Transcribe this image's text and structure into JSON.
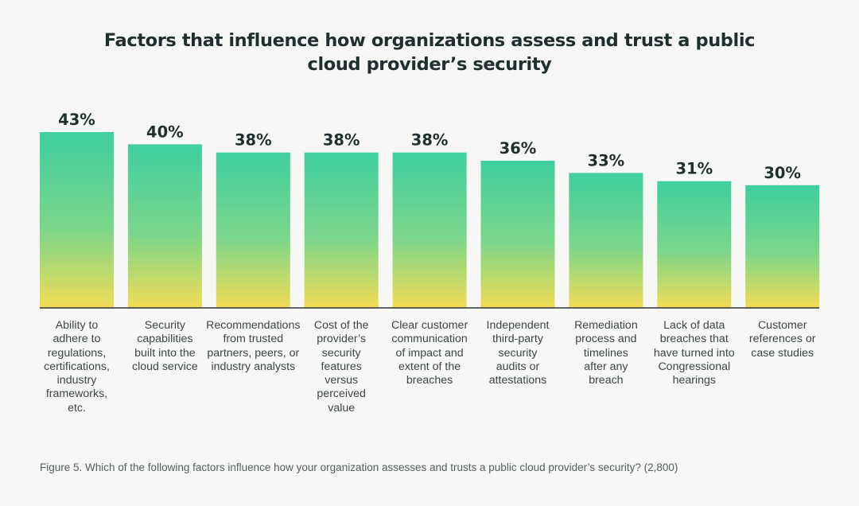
{
  "chart_data": {
    "type": "bar",
    "title_lines": [
      "Factors that influence how organizations assess and trust a public",
      "cloud provider’s security"
    ],
    "categories": [
      [
        "Ability to",
        "adhere to",
        "regulations,",
        "certifications,",
        "industry",
        "frameworks,",
        "etc."
      ],
      [
        "Security",
        "capabilities",
        "built into the",
        "cloud service"
      ],
      [
        "Recommendations",
        "from trusted",
        "partners, peers, or",
        "industry analysts"
      ],
      [
        "Cost of the",
        "provider’s",
        "security",
        "features",
        "versus",
        "perceived",
        "value"
      ],
      [
        "Clear customer",
        "communication",
        "of impact and",
        "extent of the",
        "breaches"
      ],
      [
        "Independent",
        "third-party",
        "security",
        "audits or",
        "attestations"
      ],
      [
        "Remediation",
        "process and",
        "timelines",
        "after any",
        "breach"
      ],
      [
        "Lack of data",
        "breaches that",
        "have turned into",
        "Congressional",
        "hearings"
      ],
      [
        "Customer",
        "references or",
        "case studies"
      ]
    ],
    "values": [
      43,
      40,
      38,
      38,
      38,
      36,
      33,
      31,
      30
    ],
    "value_labels": [
      "43%",
      "40%",
      "38%",
      "38%",
      "38%",
      "36%",
      "33%",
      "31%",
      "30%"
    ],
    "ylim": [
      0,
      43
    ],
    "grid": false,
    "legend": "none",
    "colors": {
      "bar_top": "#3ecfa0",
      "bar_mid": "#7bd68a",
      "bar_bottom": "#f2dc55",
      "baseline": "#2b3535"
    },
    "caption": "Figure 5. Which of the following factors influence how your organization assesses and trusts a public cloud provider’s security? (2,800)"
  }
}
